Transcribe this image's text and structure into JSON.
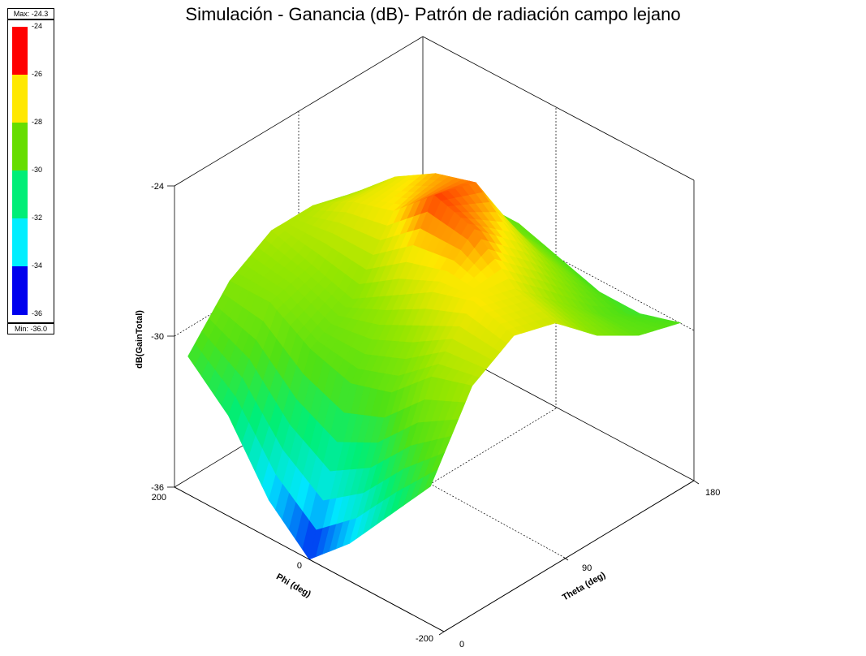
{
  "chart_data": {
    "type": "surface",
    "title": "Simulación - Ganancia (dB)- Patrón de radiación campo lejano",
    "xlabel": "Theta (deg)",
    "ylabel": "Phi (deg)",
    "zlabel": "dB(GainTotal)",
    "x_ticks": [
      "0",
      "90",
      "180"
    ],
    "y_ticks": [
      "-200",
      "0",
      "200"
    ],
    "z_ticks": [
      "-36",
      "-30",
      "-24"
    ],
    "xlim": [
      0,
      180
    ],
    "ylim": [
      -200,
      200
    ],
    "zlim": [
      -36,
      -24
    ],
    "colorbar": {
      "max_label": "Max: -24.3",
      "min_label": "Min: -36.0",
      "ticks": [
        "-24",
        "-26",
        "-28",
        "-30",
        "-32",
        "-34",
        "-36"
      ],
      "colors": [
        "#ff0000",
        "#ffe800",
        "#66dd00",
        "#00ee77",
        "#00eeff",
        "#0000ee"
      ]
    },
    "theta": [
      0,
      30,
      60,
      90,
      120,
      150,
      180
    ],
    "phi": [
      -180,
      -120,
      -60,
      0,
      60,
      120,
      180
    ],
    "gain_db": [
      [
        -30.5,
        -27.5,
        -26.5,
        -27.0,
        -28.5,
        -29.5,
        -30.0
      ],
      [
        -32.5,
        -28.0,
        -26.0,
        -26.5,
        -28.0,
        -29.5,
        -30.5
      ],
      [
        -34.5,
        -29.5,
        -26.5,
        -25.0,
        -26.5,
        -28.5,
        -30.5
      ],
      [
        -36.0,
        -30.0,
        -27.5,
        -24.5,
        -25.0,
        -28.0,
        -30.0
      ],
      [
        -34.5,
        -29.5,
        -28.5,
        -26.0,
        -25.5,
        -28.0,
        -29.5
      ],
      [
        -32.0,
        -28.5,
        -28.0,
        -26.5,
        -26.5,
        -28.5,
        -29.5
      ],
      [
        -30.5,
        -28.5,
        -27.5,
        -27.5,
        -28.0,
        -29.0,
        -30.0
      ]
    ]
  }
}
